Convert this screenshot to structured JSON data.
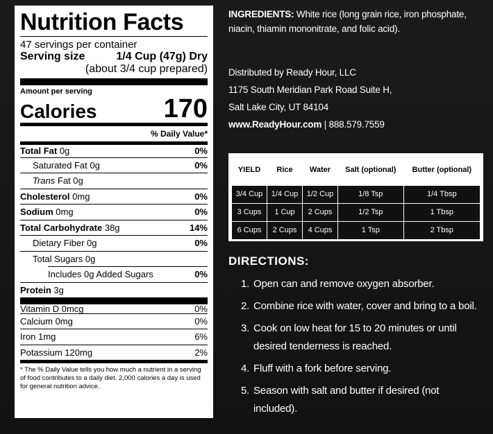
{
  "nutrition": {
    "title": "Nutrition Facts",
    "servings": "47 servings per container",
    "serving_size_label": "Serving size",
    "serving_size_value": "1/4 Cup (47g) Dry",
    "serving_size_sub": "(about 3/4 cup prepared)",
    "amount_per_serving": "Amount per serving",
    "calories_label": "Calories",
    "calories_value": "170",
    "daily_value_header": "% Daily Value*",
    "nutrients": [
      {
        "name": "Total Fat",
        "amount": "0g",
        "pct": "0%"
      },
      {
        "name": "Saturated Fat",
        "amount": "0g",
        "pct": "0%"
      },
      {
        "name": "Trans",
        "amount": "Fat 0g",
        "pct": ""
      },
      {
        "name": "Cholesterol",
        "amount": "0mg",
        "pct": "0%"
      },
      {
        "name": "Sodium",
        "amount": "0mg",
        "pct": "0%"
      },
      {
        "name": "Total Carbohydrate",
        "amount": "38g",
        "pct": "14%"
      },
      {
        "name": "Dietary Fiber",
        "amount": "0g",
        "pct": "0%"
      },
      {
        "name": "Total Sugars",
        "amount": "0g",
        "pct": ""
      },
      {
        "name": "Includes 0g Added Sugars",
        "amount": "",
        "pct": "0%"
      },
      {
        "name": "Protein",
        "amount": "3g",
        "pct": ""
      }
    ],
    "vitamins": [
      {
        "name": "Vitamin D 0mcg",
        "pct": "0%"
      },
      {
        "name": "Calcium 0mg",
        "pct": "0%"
      },
      {
        "name": "Iron 1mg",
        "pct": "6%"
      },
      {
        "name": "Potassium 120mg",
        "pct": "2%"
      }
    ],
    "footnote": "* The % Daily Value tells you how much a nutrient in a serving of food contributes to a daily diet. 2,000 calories a day is used for general nutrition advice."
  },
  "ingredients": {
    "label": "INGREDIENTS:",
    "text": "White rice (long grain rice, iron phosphate, niacin, thiamin mononitrate, and folic acid)."
  },
  "distributor": {
    "line1": "Distributed by Ready Hour, LLC",
    "line2": "1175 South Meridian Park Road Suite H,",
    "line3": "Salt Lake City, UT 84104",
    "website": "www.ReadyHour.com",
    "phone": " | 888.579.7559"
  },
  "yield_table": {
    "headers": [
      "YIELD",
      "Rice",
      "Water",
      "Salt (optional)",
      "Butter (optional)"
    ],
    "rows": [
      [
        "3/4 Cup",
        "1/4 Cup",
        "1/2 Cup",
        "1/8 Tsp",
        "1/4 Tbsp"
      ],
      [
        "3 Cups",
        "1 Cup",
        "2 Cups",
        "1/2 Tsp",
        "1 Tbsp"
      ],
      [
        "6 Cups",
        "2 Cups",
        "4 Cups",
        "1 Tsp",
        "2 Tbsp"
      ]
    ]
  },
  "directions": {
    "title": "DIRECTIONS:",
    "steps": [
      {
        "num": "1.",
        "text": "Open can and remove oxygen absorber."
      },
      {
        "num": "2.",
        "text": "Combine rice with water, cover and bring to a boil."
      },
      {
        "num": "3.",
        "text": "Cook on low heat for 15 to 20 minutes or until desired tenderness is reached."
      },
      {
        "num": "4.",
        "text": "Fluff with a fork before serving."
      },
      {
        "num": "5.",
        "text": "Season with salt and butter if desired (not included)."
      }
    ]
  }
}
